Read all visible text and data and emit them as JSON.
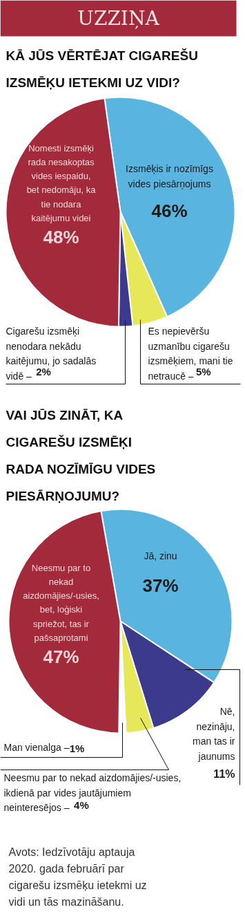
{
  "chart_data": [
    {
      "type": "pie",
      "subtitle": "UZZIŅA",
      "title": "KĀ JŪS VĒRTĒJAT CIGAREŠU IZSMĒĶU IETEKMI UZ VIDI?",
      "categories": [
        "Izsmēķis ir nozīmīgs vides piesārņojums",
        "Es nepievēršu uzmanību cigarešu izsmēķiem, mani tie netraucē –",
        "Cigarešu izsmēķi nenodara nekādu kaitējumu, jo sadalās vidē –",
        "Nomesti izsmēķi rada nesakoptas vides iespaidu, bet nedomāju, ka tie nodara kaitējumu videi"
      ],
      "values": [
        46,
        5,
        2,
        48
      ],
      "colors": [
        "#5ab4e0",
        "#e6e85a",
        "#3c3a8c",
        "#a32a3a"
      ],
      "value_labels": [
        "46%",
        "5%",
        "2%",
        "48%"
      ]
    },
    {
      "type": "pie",
      "title": "VAI JŪS ZINĀT, KA CIGAREŠU IZSMĒĶI RADA NOZĪMĪGU VIDES PIESĀRŅOJUMU?",
      "categories": [
        "Jā, zinu",
        "Nē, nezināju, man tas ir jaunums",
        "Neesmu par to nekad aizdomājies/-usies, ikdienā par vides jautājumiem neinteresējos –",
        "Man vienalga –",
        "Neesmu par to nekad aizdomājies/-usies, bet, loģiski spriežot, tas ir pašsaprotami"
      ],
      "values": [
        37,
        11,
        4,
        1,
        47
      ],
      "colors": [
        "#5ab4e0",
        "#3c3a8c",
        "#e6e85a",
        "#ffffff",
        "#a32a3a"
      ],
      "value_labels": [
        "37%",
        "11%",
        "4%",
        "1%",
        "47%"
      ],
      "annotations": [
        "Avots: Iedzīvotāju aptauja 2020. gada februārī par cigarešu izsmēķu ietekmi uz vidi un tās mazināšanu."
      ]
    }
  ]
}
